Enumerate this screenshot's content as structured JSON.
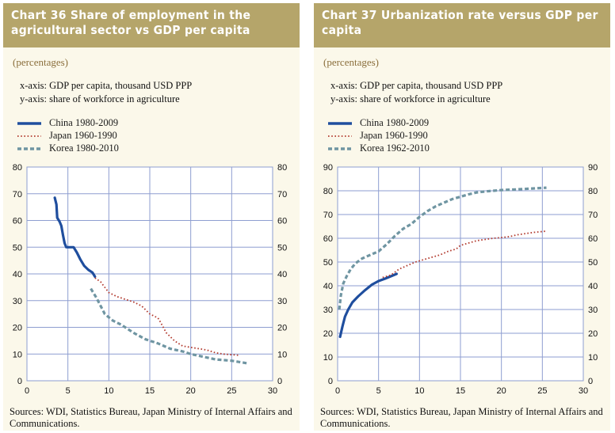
{
  "left_panel": {
    "title": "Chart 36 Share of employment in the agricultural sector vs GDP per capita",
    "subtitle": "(percentages)",
    "xnote": "x-axis:  GDP per capita, thousand USD PPP",
    "ynote": "y-axis:  share of workforce in agriculture",
    "footer": "Sources: WDI, Statistics Bureau, Japan Ministry of Internal Affairs and Communications."
  },
  "right_panel": {
    "title": "Chart 37 Urbanization rate versus GDP per capita",
    "subtitle": "(percentages)",
    "xnote": "x-axis:  GDP per capita, thousand USD PPP",
    "ynote": "y-axis:  share of workforce in agriculture",
    "footer": "Sources: WDI, Statistics Bureau, Japan Ministry of Internal Affairs and Communications."
  },
  "colors": {
    "china": "#1f4e9e",
    "japan": "#b23a2e",
    "korea": "#6f95a2",
    "grid": "#8e9ed0",
    "title_bg": "#b5a56a",
    "panel_bg": "#fbf8ea"
  },
  "chart_data": [
    {
      "type": "line",
      "title": "Chart 36 Share of employment in the agricultural sector vs GDP per capita",
      "xlabel": "GDP per capita, thousand USD PPP",
      "ylabel": "share of workforce in agriculture",
      "xlim": [
        0,
        30
      ],
      "ylim": [
        0,
        80
      ],
      "x_ticks": [
        0,
        5,
        10,
        15,
        20,
        25,
        30
      ],
      "y_ticks": [
        0,
        10,
        20,
        30,
        40,
        50,
        60,
        70,
        80
      ],
      "grid": true,
      "legend_position": "top-left",
      "series": [
        {
          "name": "China 1980-2009",
          "style": "solid",
          "color": "#1f4e9e",
          "points": [
            [
              3.4,
              68.5
            ],
            [
              3.6,
              66
            ],
            [
              3.7,
              61
            ],
            [
              4.0,
              59.5
            ],
            [
              4.2,
              58
            ],
            [
              4.4,
              54.5
            ],
            [
              4.6,
              51.5
            ],
            [
              4.8,
              50
            ],
            [
              5.3,
              50
            ],
            [
              5.7,
              50
            ],
            [
              6.1,
              48
            ],
            [
              6.5,
              45.5
            ],
            [
              7.0,
              43
            ],
            [
              7.5,
              41.5
            ],
            [
              8.0,
              40.5
            ],
            [
              8.3,
              39
            ]
          ]
        },
        {
          "name": "Japan 1960-1990",
          "style": "dotted",
          "color": "#b23a2e",
          "points": [
            [
              8.3,
              38.5
            ],
            [
              9.0,
              37
            ],
            [
              10.0,
              33
            ],
            [
              11.0,
              31.5
            ],
            [
              12.0,
              30.5
            ],
            [
              13.0,
              29.5
            ],
            [
              14.0,
              28
            ],
            [
              15.0,
              25
            ],
            [
              16.0,
              23.5
            ],
            [
              16.3,
              22
            ],
            [
              17.0,
              18
            ],
            [
              18.0,
              15
            ],
            [
              19.0,
              13
            ],
            [
              20.0,
              12.5
            ],
            [
              21.0,
              12
            ],
            [
              22.0,
              11.5
            ],
            [
              23.0,
              10.5
            ],
            [
              24.0,
              10
            ],
            [
              26.0,
              9.5
            ]
          ]
        },
        {
          "name": "Korea 1980-2010",
          "style": "dashed",
          "color": "#6f95a2",
          "points": [
            [
              7.8,
              34.5
            ],
            [
              8.5,
              31
            ],
            [
              9.0,
              28
            ],
            [
              9.5,
              25
            ],
            [
              10.5,
              22.5
            ],
            [
              11.5,
              21
            ],
            [
              13.0,
              18
            ],
            [
              14.5,
              15.5
            ],
            [
              16.0,
              14
            ],
            [
              17.5,
              12
            ],
            [
              19.0,
              11
            ],
            [
              20.0,
              10
            ],
            [
              21.5,
              9
            ],
            [
              23.0,
              8
            ],
            [
              25.0,
              7.5
            ],
            [
              26.0,
              7
            ],
            [
              27.0,
              6.5
            ]
          ]
        }
      ]
    },
    {
      "type": "line",
      "title": "Chart 37 Urbanization rate versus GDP per capita",
      "xlabel": "GDP per capita, thousand USD PPP",
      "ylabel": "share of workforce in agriculture",
      "xlim": [
        0,
        30
      ],
      "ylim": [
        0,
        90
      ],
      "x_ticks": [
        0,
        5,
        10,
        15,
        20,
        25,
        30
      ],
      "y_ticks": [
        0,
        10,
        20,
        30,
        40,
        50,
        60,
        70,
        80,
        90
      ],
      "grid": true,
      "legend_position": "top-left",
      "series": [
        {
          "name": "China 1980-2009",
          "style": "solid",
          "color": "#1f4e9e",
          "points": [
            [
              0.3,
              18.5
            ],
            [
              0.6,
              23
            ],
            [
              0.9,
              27
            ],
            [
              1.3,
              30
            ],
            [
              1.8,
              33
            ],
            [
              2.5,
              35.5
            ],
            [
              3.3,
              38
            ],
            [
              4.2,
              40.5
            ],
            [
              5.0,
              42
            ],
            [
              5.8,
              43
            ],
            [
              6.5,
              44
            ],
            [
              7.2,
              45
            ]
          ]
        },
        {
          "name": "Japan 1960-1990",
          "style": "dotted",
          "color": "#b23a2e",
          "points": [
            [
              5.5,
              43.5
            ],
            [
              6.5,
              44.5
            ],
            [
              7.5,
              47
            ],
            [
              8.5,
              48.5
            ],
            [
              9.5,
              50
            ],
            [
              10.5,
              51
            ],
            [
              11.5,
              52
            ],
            [
              12.5,
              53
            ],
            [
              13.5,
              54.5
            ],
            [
              14.5,
              55.5
            ],
            [
              15.0,
              57
            ],
            [
              16.0,
              58
            ],
            [
              17.0,
              59
            ],
            [
              18.0,
              59.5
            ],
            [
              19.0,
              60
            ],
            [
              20.0,
              60.3
            ],
            [
              21.0,
              60.7
            ],
            [
              22.0,
              61.5
            ],
            [
              23.0,
              62
            ],
            [
              24.0,
              62.5
            ],
            [
              25.5,
              63
            ]
          ]
        },
        {
          "name": "Korea 1962-2010",
          "style": "dashed",
          "color": "#6f95a2",
          "points": [
            [
              0.2,
              30
            ],
            [
              0.4,
              36
            ],
            [
              0.7,
              41
            ],
            [
              1.1,
              44
            ],
            [
              1.6,
              47
            ],
            [
              2.2,
              49.5
            ],
            [
              3.0,
              51.5
            ],
            [
              4.0,
              53
            ],
            [
              5.0,
              54.5
            ],
            [
              6.0,
              57.5
            ],
            [
              7.0,
              61
            ],
            [
              8.0,
              64
            ],
            [
              9.0,
              66
            ],
            [
              10.0,
              69
            ],
            [
              11.0,
              71.5
            ],
            [
              12.0,
              73.5
            ],
            [
              13.0,
              75
            ],
            [
              14.0,
              76.5
            ],
            [
              15.0,
              77.5
            ],
            [
              16.0,
              78.5
            ],
            [
              17.0,
              79.3
            ],
            [
              18.0,
              79.7
            ],
            [
              19.0,
              80
            ],
            [
              20.0,
              80.3
            ],
            [
              22.0,
              80.6
            ],
            [
              24.0,
              81
            ],
            [
              25.5,
              81.3
            ]
          ]
        }
      ]
    }
  ]
}
